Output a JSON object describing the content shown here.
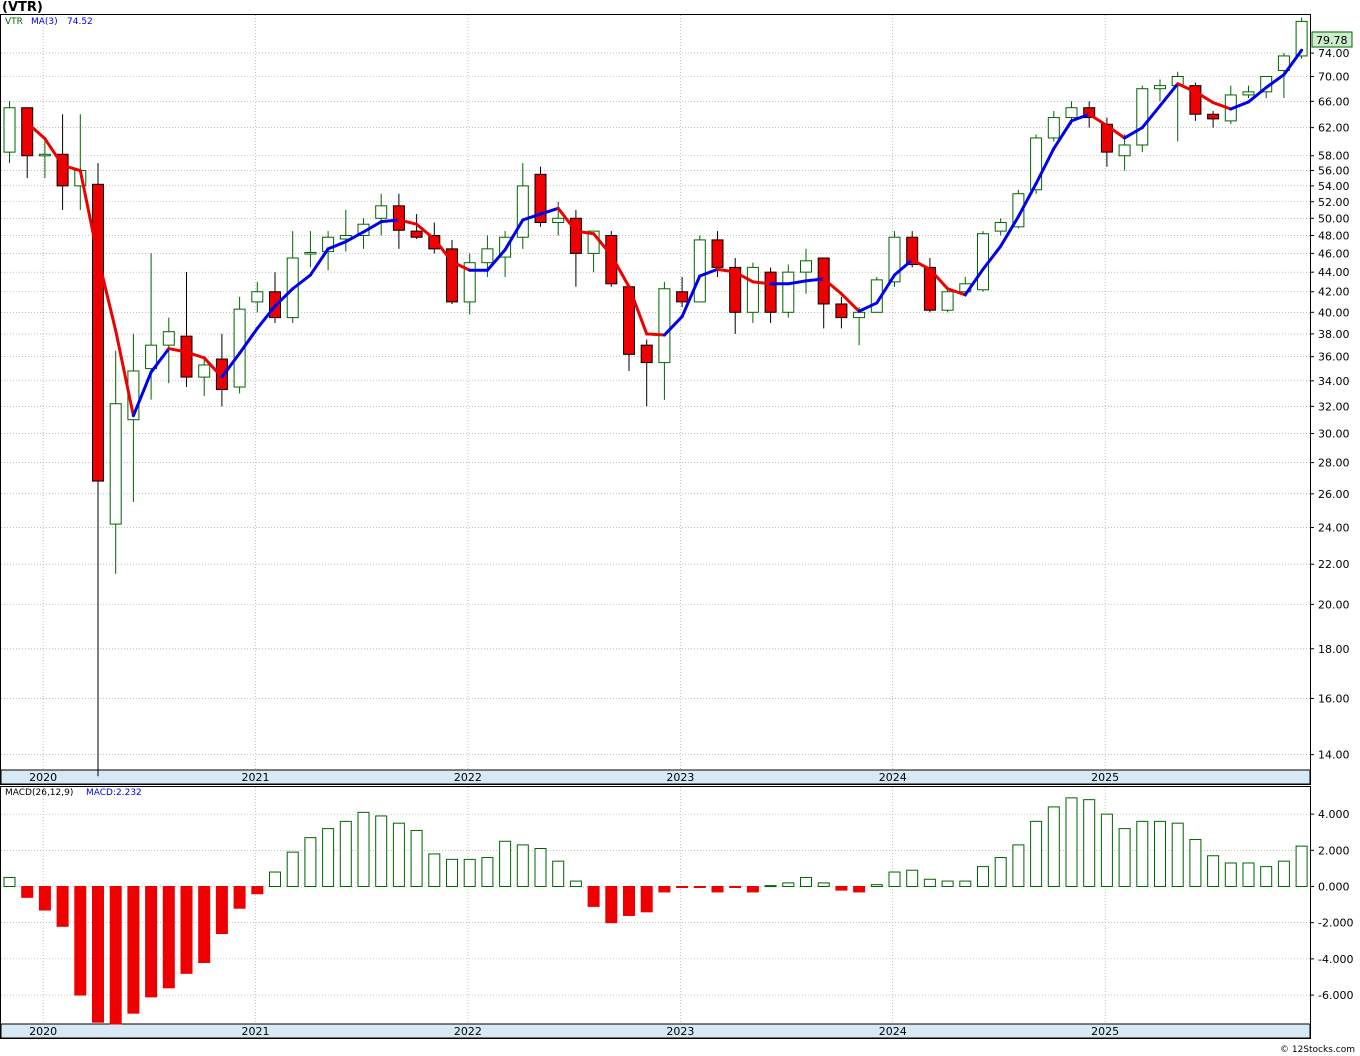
{
  "header": {
    "symbol": "(VTR)"
  },
  "price_panel": {
    "legend": {
      "ticker": "VTR",
      "ma_label": "MA(3)",
      "ma_value": "74.52"
    },
    "last_price": "79.78"
  },
  "macd_panel": {
    "legend": {
      "label": "MACD(26,12,9)",
      "value_label": "MACD:2.232"
    }
  },
  "credit": "© 12Stocks.com",
  "colors": {
    "up": "#006400",
    "down": "#ee0000",
    "ma_up": "#0000ee",
    "ma_down": "#ee0000",
    "axis_band": "#d6e9f5",
    "grid": "#999999",
    "price_tag_bg": "#cceecc"
  },
  "chart_data": [
    {
      "type": "candlestick",
      "scale": "log",
      "ylim": [
        13.5,
        81
      ],
      "yticks": [
        14,
        16,
        18,
        20,
        22,
        24,
        26,
        28,
        30,
        32,
        34,
        36,
        38,
        40,
        42,
        44,
        46,
        48,
        50,
        52,
        54,
        56,
        58,
        62,
        66,
        70,
        74
      ],
      "ytick_labels": [
        "14.00",
        "16.00",
        "18.00",
        "20.00",
        "22.00",
        "24.00",
        "26.00",
        "28.00",
        "30.00",
        "32.00",
        "34.00",
        "36.00",
        "38.00",
        "40.00",
        "42.00",
        "44.00",
        "46.00",
        "48.00",
        "50.00",
        "52.00",
        "54.00",
        "56.00",
        "58.00",
        "62.00",
        "66.00",
        "70.00",
        "74.00"
      ],
      "period": "monthly",
      "start_month": "2020-01",
      "x_tick_labels": [
        "2020",
        "2021",
        "2022",
        "2023",
        "2024",
        "2025"
      ],
      "ohlc": [
        [
          58.5,
          66.0,
          57.0,
          65.0
        ],
        [
          65.0,
          65.0,
          55.0,
          58.0
        ],
        [
          58.0,
          60.0,
          55.0,
          58.2
        ],
        [
          58.2,
          64.0,
          51.0,
          54.0
        ],
        [
          54.0,
          64.0,
          51.0,
          56.0
        ],
        [
          54.2,
          57.0,
          13.3,
          26.8
        ],
        [
          24.2,
          36.5,
          21.5,
          32.2
        ],
        [
          31.0,
          38.0,
          25.5,
          34.8
        ],
        [
          35.0,
          46.0,
          32.5,
          37.0
        ],
        [
          37.0,
          39.5,
          33.8,
          38.2
        ],
        [
          37.8,
          44.0,
          33.5,
          34.3
        ],
        [
          34.3,
          36.0,
          32.8,
          35.3
        ],
        [
          35.8,
          38.0,
          32.0,
          33.3
        ],
        [
          33.5,
          41.5,
          33.0,
          40.3
        ],
        [
          41.0,
          43.0,
          40.0,
          42.0
        ],
        [
          42.0,
          44.0,
          39.0,
          39.5
        ],
        [
          39.5,
          48.5,
          39.0,
          45.5
        ],
        [
          46.0,
          48.5,
          44.5,
          46.1
        ],
        [
          46.2,
          48.5,
          44.2,
          47.8
        ],
        [
          47.6,
          51.0,
          46.2,
          48.0
        ],
        [
          48.0,
          50.0,
          46.5,
          49.3
        ],
        [
          50.0,
          53.0,
          48.0,
          51.5
        ],
        [
          51.5,
          53.0,
          46.5,
          48.6
        ],
        [
          48.5,
          50.5,
          47.6,
          47.8
        ],
        [
          48.0,
          49.5,
          46.0,
          46.5
        ],
        [
          46.5,
          47.5,
          40.8,
          41.0
        ],
        [
          41.0,
          46.0,
          39.8,
          45.0
        ],
        [
          45.0,
          48.0,
          43.5,
          46.5
        ],
        [
          45.6,
          48.5,
          43.5,
          47.8
        ],
        [
          47.8,
          57.0,
          46.5,
          54.0
        ],
        [
          55.5,
          56.5,
          49.0,
          49.5
        ],
        [
          49.5,
          52.0,
          48.0,
          50.0
        ],
        [
          50.0,
          51.0,
          42.5,
          46.0
        ],
        [
          46.0,
          48.5,
          44.0,
          48.5
        ],
        [
          48.0,
          48.5,
          42.5,
          42.8
        ],
        [
          42.5,
          42.5,
          34.8,
          36.2
        ],
        [
          37.0,
          37.5,
          32.0,
          35.5
        ],
        [
          35.5,
          43.0,
          32.5,
          42.3
        ],
        [
          42.0,
          43.5,
          40.5,
          41.0
        ],
        [
          41.0,
          48.0,
          41.0,
          47.5
        ],
        [
          47.5,
          48.5,
          43.5,
          44.5
        ],
        [
          44.5,
          45.5,
          38.0,
          40.0
        ],
        [
          40.0,
          45.0,
          39.0,
          44.5
        ],
        [
          44.0,
          44.5,
          39.0,
          40.0
        ],
        [
          40.0,
          44.8,
          39.5,
          44.0
        ],
        [
          44.0,
          46.5,
          41.8,
          45.2
        ],
        [
          45.5,
          45.5,
          38.5,
          40.8
        ],
        [
          40.8,
          41.5,
          38.5,
          39.5
        ],
        [
          39.5,
          40.5,
          37.0,
          40.0
        ],
        [
          40.0,
          43.5,
          40.0,
          43.2
        ],
        [
          43.0,
          48.5,
          42.5,
          47.8
        ],
        [
          47.8,
          48.5,
          44.5,
          44.8
        ],
        [
          44.5,
          45.5,
          40.0,
          40.2
        ],
        [
          40.2,
          42.5,
          40.0,
          42.0
        ],
        [
          42.0,
          43.5,
          41.5,
          42.8
        ],
        [
          42.2,
          48.5,
          42.0,
          48.2
        ],
        [
          48.5,
          50.0,
          48.0,
          49.5
        ],
        [
          49.0,
          53.5,
          48.8,
          53.0
        ],
        [
          53.5,
          61.0,
          53.0,
          60.5
        ],
        [
          60.5,
          64.5,
          60.0,
          63.5
        ],
        [
          63.5,
          66.0,
          62.5,
          65.0
        ],
        [
          65.0,
          66.0,
          62.0,
          63.5
        ],
        [
          62.5,
          63.5,
          56.5,
          58.5
        ],
        [
          58.0,
          61.0,
          56.0,
          59.5
        ],
        [
          59.5,
          68.5,
          58.5,
          68.0
        ],
        [
          68.0,
          69.5,
          66.0,
          68.5
        ],
        [
          68.5,
          70.8,
          60.0,
          70.0
        ],
        [
          68.5,
          69.0,
          63.0,
          64.0
        ],
        [
          64.0,
          64.5,
          62.0,
          63.3
        ],
        [
          63.0,
          68.5,
          62.5,
          67.0
        ],
        [
          67.0,
          68.5,
          66.5,
          67.5
        ],
        [
          67.5,
          70.0,
          66.5,
          70.0
        ],
        [
          71.0,
          74.0,
          66.5,
          73.5
        ],
        [
          73.5,
          80.5,
          73.0,
          79.78
        ]
      ],
      "ma3": [
        null,
        62.7,
        60.4,
        56.7,
        56.0,
        45.6,
        38.3,
        31.3,
        34.7,
        36.7,
        36.4,
        35.9,
        34.3,
        36.3,
        38.5,
        40.6,
        42.3,
        43.7,
        46.5,
        47.3,
        48.4,
        49.6,
        49.8,
        49.3,
        47.6,
        45.1,
        44.2,
        44.2,
        46.4,
        49.8,
        50.5,
        51.2,
        48.5,
        48.2,
        45.8,
        42.5,
        38.0,
        37.9,
        39.6,
        43.6,
        44.3,
        44.0,
        43.0,
        42.8,
        42.8,
        43.1,
        43.3,
        41.8,
        40.1,
        40.9,
        43.7,
        45.3,
        44.3,
        42.3,
        41.7,
        44.3,
        46.8,
        50.2,
        54.3,
        59.0,
        63.0,
        64.0,
        62.3,
        60.5,
        62.0,
        65.3,
        68.8,
        67.5,
        65.8,
        64.8,
        65.9,
        68.2,
        70.3,
        74.5
      ]
    },
    {
      "type": "bar",
      "title": "MACD(26,12,9)",
      "ylim": [
        -7.6,
        5.5
      ],
      "yticks": [
        -6,
        -4,
        -2,
        0,
        2,
        4
      ],
      "ytick_labels": [
        "-6.000",
        "-4.000",
        "-2.000",
        "0.000",
        "2.000",
        "4.000"
      ],
      "values": [
        0.5,
        -0.6,
        -1.3,
        -2.2,
        -6.0,
        -7.5,
        -7.6,
        -7.0,
        -6.1,
        -5.6,
        -4.8,
        -4.2,
        -2.6,
        -1.2,
        -0.4,
        0.8,
        1.9,
        2.7,
        3.2,
        3.6,
        4.1,
        3.9,
        3.5,
        3.1,
        1.8,
        1.5,
        1.5,
        1.6,
        2.5,
        2.3,
        2.1,
        1.4,
        0.3,
        -1.1,
        -2.0,
        -1.6,
        -1.4,
        -0.3,
        -0.05,
        -0.05,
        -0.3,
        -0.05,
        -0.3,
        0.05,
        0.2,
        0.5,
        0.2,
        -0.2,
        -0.3,
        0.1,
        0.8,
        0.9,
        0.4,
        0.3,
        0.3,
        1.1,
        1.6,
        2.3,
        3.6,
        4.4,
        4.9,
        4.8,
        4.0,
        3.2,
        3.6,
        3.6,
        3.5,
        2.6,
        1.7,
        1.3,
        1.3,
        1.1,
        1.4,
        2.232
      ]
    }
  ]
}
